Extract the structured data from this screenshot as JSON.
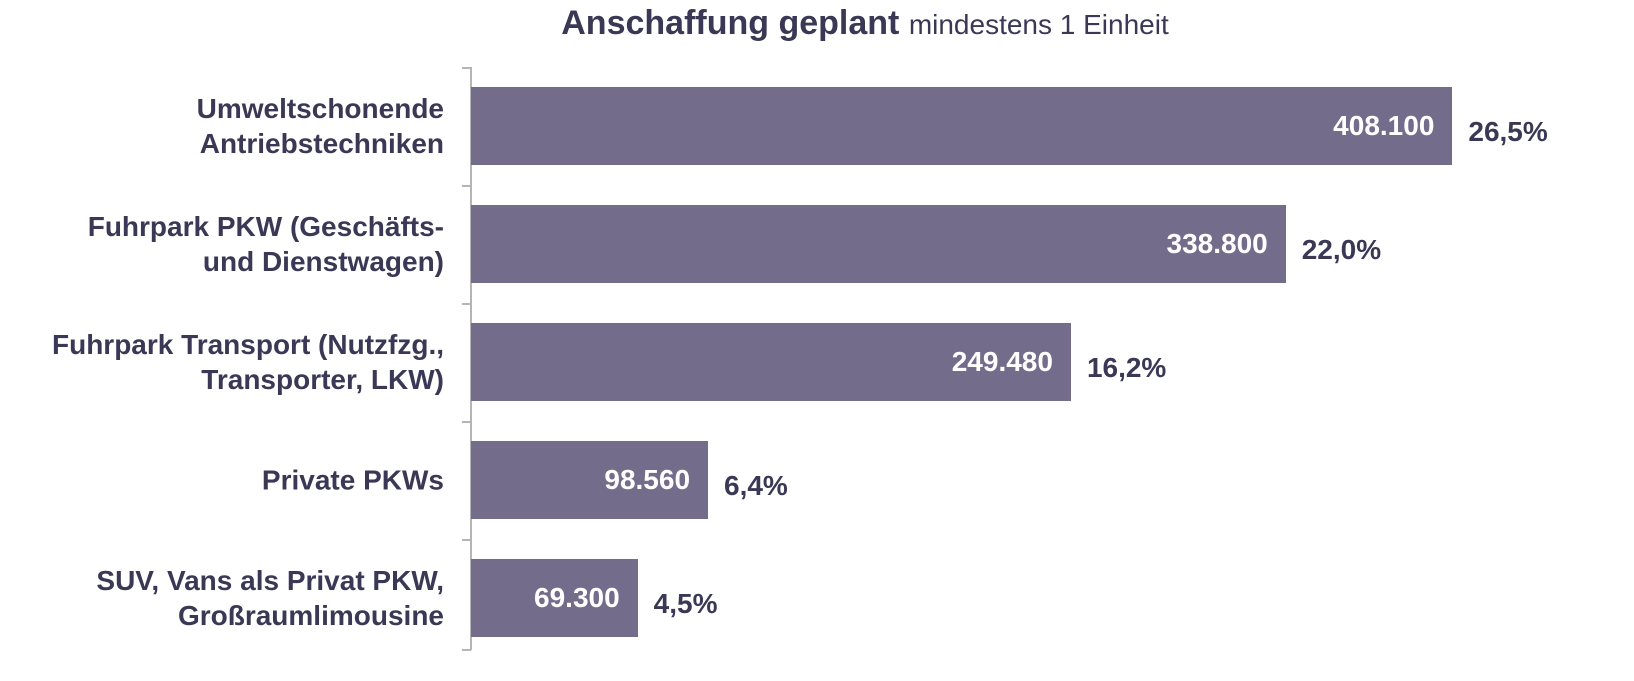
{
  "chart_data": {
    "type": "bar",
    "orientation": "horizontal",
    "title": "Anschaffung geplant",
    "subtitle": "mindestens 1 Einheit",
    "categories": [
      "Umweltschonende\nAntriebstechniken",
      "Fuhrpark PKW (Geschäfts-\nund Dienstwagen)",
      "Fuhrpark Transport (Nutzfzg.,\nTransporter, LKW)",
      "Private PKWs",
      "SUV, Vans als Privat PKW,\nGroßraumlimousine"
    ],
    "values": [
      408100,
      338800,
      249480,
      98560,
      69300
    ],
    "value_labels": [
      "408.100",
      "338.800",
      "249.480",
      "98.560",
      "69.300"
    ],
    "shares": [
      26.5,
      22.0,
      16.2,
      6.4,
      4.5
    ],
    "share_labels": [
      "26,5%",
      "22,0%",
      "16,2%",
      "6,4%",
      "4,5%"
    ],
    "color": "#736c8b",
    "xlim": [
      0,
      420000
    ]
  }
}
